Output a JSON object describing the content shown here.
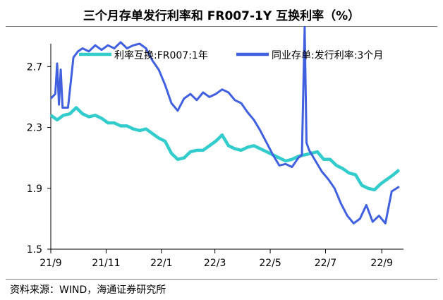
{
  "title": "三个月存单发行利率和 FR007-1Y 互换利率（%）",
  "source": "资料来源：WIND，海通证券研究所",
  "chart_data": {
    "type": "line",
    "x_ticks": [
      "21/9",
      "21/11",
      "22/1",
      "22/3",
      "22/5",
      "22/7",
      "22/9"
    ],
    "y_ticks": [
      "1.5",
      "1.9",
      "2.3",
      "2.7"
    ],
    "ylim": [
      1.5,
      2.85
    ],
    "grid": false,
    "legend_position": "top",
    "series": [
      {
        "name": "利率互换:FR007:1年",
        "color": "#33cccc",
        "x": [
          "2021-09-01",
          "2021-09-08",
          "2021-09-15",
          "2021-09-22",
          "2021-09-29",
          "2021-10-06",
          "2021-10-13",
          "2021-10-20",
          "2021-10-27",
          "2021-11-03",
          "2021-11-10",
          "2021-11-17",
          "2021-11-24",
          "2021-12-01",
          "2021-12-08",
          "2021-12-15",
          "2021-12-22",
          "2021-12-29",
          "2022-01-05",
          "2022-01-12",
          "2022-01-19",
          "2022-01-26",
          "2022-02-02",
          "2022-02-09",
          "2022-02-16",
          "2022-02-23",
          "2022-03-02",
          "2022-03-09",
          "2022-03-16",
          "2022-03-23",
          "2022-03-30",
          "2022-04-06",
          "2022-04-13",
          "2022-04-20",
          "2022-04-27",
          "2022-05-04",
          "2022-05-11",
          "2022-05-18",
          "2022-05-25",
          "2022-06-01",
          "2022-06-08",
          "2022-06-15",
          "2022-06-22",
          "2022-06-29",
          "2022-07-06",
          "2022-07-13",
          "2022-07-20",
          "2022-07-27",
          "2022-08-03",
          "2022-08-10",
          "2022-08-17",
          "2022-08-24",
          "2022-08-31",
          "2022-09-07",
          "2022-09-14",
          "2022-09-20"
        ],
        "values": [
          2.38,
          2.35,
          2.38,
          2.39,
          2.43,
          2.39,
          2.37,
          2.38,
          2.36,
          2.33,
          2.33,
          2.31,
          2.31,
          2.29,
          2.28,
          2.29,
          2.26,
          2.23,
          2.21,
          2.13,
          2.09,
          2.1,
          2.14,
          2.15,
          2.15,
          2.18,
          2.21,
          2.25,
          2.18,
          2.16,
          2.15,
          2.17,
          2.18,
          2.16,
          2.14,
          2.12,
          2.1,
          2.08,
          2.09,
          2.11,
          2.12,
          2.13,
          2.14,
          2.09,
          2.09,
          2.05,
          2.03,
          2.0,
          1.99,
          1.92,
          1.9,
          1.89,
          1.93,
          1.96,
          1.99,
          2.02
        ]
      },
      {
        "name": "同业存单:发行利率:3个月",
        "color": "#4060e0",
        "x": [
          "2021-09-01",
          "2021-09-06",
          "2021-09-08",
          "2021-09-10",
          "2021-09-12",
          "2021-09-14",
          "2021-09-20",
          "2021-09-26",
          "2021-10-01",
          "2021-10-06",
          "2021-10-13",
          "2021-10-20",
          "2021-10-27",
          "2021-11-03",
          "2021-11-10",
          "2021-11-17",
          "2021-11-24",
          "2021-12-01",
          "2021-12-08",
          "2021-12-15",
          "2021-12-22",
          "2021-12-29",
          "2022-01-05",
          "2022-01-12",
          "2022-01-19",
          "2022-01-26",
          "2022-02-02",
          "2022-02-09",
          "2022-02-16",
          "2022-02-23",
          "2022-03-02",
          "2022-03-09",
          "2022-03-16",
          "2022-03-23",
          "2022-03-30",
          "2022-04-06",
          "2022-04-13",
          "2022-04-20",
          "2022-04-27",
          "2022-05-04",
          "2022-05-11",
          "2022-05-18",
          "2022-05-25",
          "2022-06-01",
          "2022-06-05",
          "2022-06-08",
          "2022-06-10",
          "2022-06-13",
          "2022-06-20",
          "2022-06-27",
          "2022-07-04",
          "2022-07-11",
          "2022-07-18",
          "2022-07-25",
          "2022-08-01",
          "2022-08-08",
          "2022-08-15",
          "2022-08-22",
          "2022-08-29",
          "2022-09-05",
          "2022-09-12",
          "2022-09-20"
        ],
        "values": [
          2.49,
          2.52,
          2.72,
          2.45,
          2.68,
          2.43,
          2.43,
          2.76,
          2.8,
          2.82,
          2.8,
          2.84,
          2.81,
          2.84,
          2.82,
          2.86,
          2.82,
          2.84,
          2.85,
          2.82,
          2.74,
          2.68,
          2.58,
          2.46,
          2.41,
          2.49,
          2.52,
          2.48,
          2.53,
          2.5,
          2.52,
          2.55,
          2.53,
          2.48,
          2.46,
          2.4,
          2.35,
          2.28,
          2.2,
          2.12,
          2.05,
          2.06,
          2.04,
          2.1,
          2.12,
          2.96,
          2.2,
          2.15,
          2.08,
          2.01,
          1.96,
          1.9,
          1.8,
          1.72,
          1.67,
          1.7,
          1.79,
          1.68,
          1.72,
          1.67,
          1.88,
          1.91
        ]
      }
    ]
  }
}
